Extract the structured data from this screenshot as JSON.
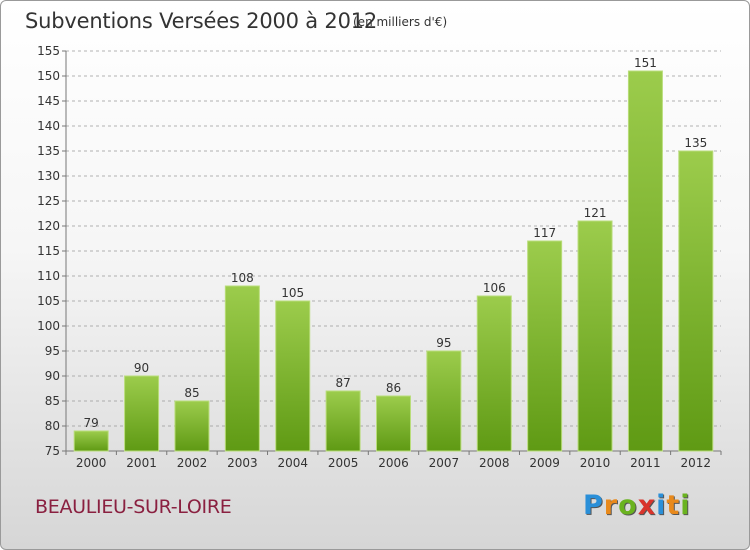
{
  "title": "Subventions Versées 2000 à 2012",
  "subtitle": "(en milliers d'€)",
  "location": "BEAULIEU-SUR-LOIRE",
  "logo": {
    "text": "Proxiti",
    "letters": [
      {
        "ch": "P",
        "color": "#2a8fd8"
      },
      {
        "ch": "r",
        "color": "#e8891b"
      },
      {
        "ch": "o",
        "color": "#6ab31f"
      },
      {
        "ch": "x",
        "color": "#d9342b"
      },
      {
        "ch": "i",
        "color": "#2a8fd8"
      },
      {
        "ch": "t",
        "color": "#e8891b"
      },
      {
        "ch": "i",
        "color": "#6ab31f"
      }
    ]
  },
  "colors": {
    "bar_top": "#9ccc4c",
    "bar_bottom": "#5f9a14",
    "grid": "#999999",
    "axis": "#777777",
    "text": "#333333"
  },
  "chart_data": {
    "type": "bar",
    "title": "Subventions Versées 2000 à 2012",
    "subtitle": "(en milliers d'€)",
    "xlabel": "",
    "ylabel": "",
    "categories": [
      "2000",
      "2001",
      "2002",
      "2003",
      "2004",
      "2005",
      "2006",
      "2007",
      "2008",
      "2009",
      "2010",
      "2011",
      "2012"
    ],
    "values": [
      79,
      90,
      85,
      108,
      105,
      87,
      86,
      95,
      106,
      117,
      121,
      151,
      135
    ],
    "ylim": [
      75,
      155
    ],
    "yticks": [
      75,
      80,
      85,
      90,
      95,
      100,
      105,
      110,
      115,
      120,
      125,
      130,
      135,
      140,
      145,
      150,
      155
    ],
    "grid": "dashed horizontal",
    "data_labels": true,
    "legend": "none"
  }
}
